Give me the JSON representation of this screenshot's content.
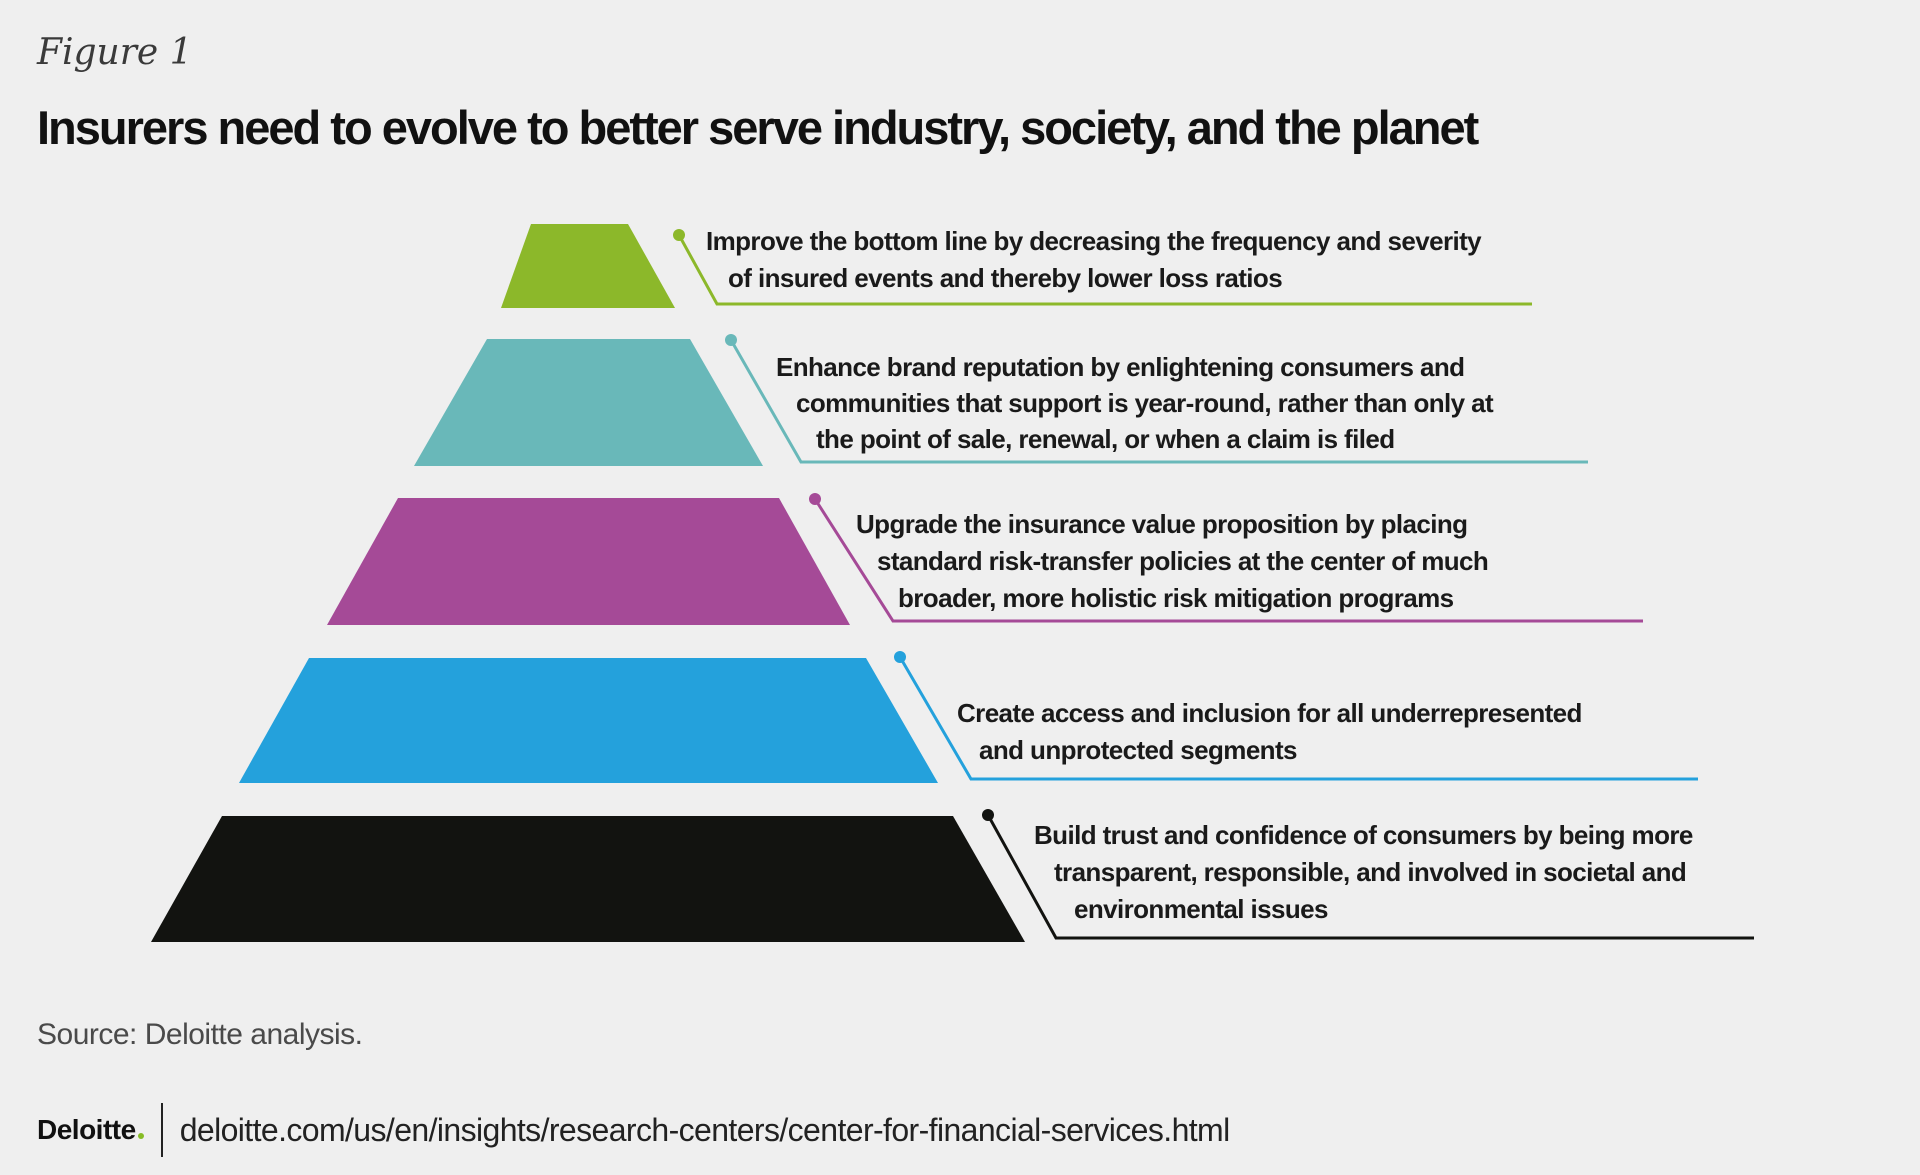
{
  "figure_label": "Figure 1",
  "title": "Insurers need to evolve to better serve industry, society, and the planet",
  "colors": {
    "background": "#efefef",
    "level_1": "#8cb82a",
    "level_2": "#69b8b9",
    "level_3": "#a54a97",
    "level_4": "#24a1dc",
    "level_5": "#121310"
  },
  "levels": [
    {
      "color": "#8cb82a",
      "lines": [
        "Improve the bottom line by decreasing the frequency and severity",
        "of insured events and thereby lower loss ratios"
      ]
    },
    {
      "color": "#69b8b9",
      "lines": [
        "Enhance brand reputation by enlightening consumers and",
        "communities that support is year-round, rather than only at",
        "the point of sale, renewal, or when a claim is filed"
      ]
    },
    {
      "color": "#a54a97",
      "lines": [
        "Upgrade the insurance value proposition by placing",
        "standard risk-transfer policies at the center of much",
        "broader, more holistic risk mitigation programs"
      ]
    },
    {
      "color": "#24a1dc",
      "lines": [
        "Create access and inclusion for all underrepresented",
        "and unprotected segments"
      ]
    },
    {
      "color": "#121310",
      "lines": [
        "Build trust and confidence of consumers by being more",
        "transparent, responsible, and involved in societal and",
        "environmental issues"
      ]
    }
  ],
  "source": "Source: Deloitte analysis.",
  "footer": {
    "brand": "Deloitte",
    "brand_dot": ".",
    "url": "deloitte.com/us/en/insights/research-centers/center-for-financial-services.html"
  }
}
